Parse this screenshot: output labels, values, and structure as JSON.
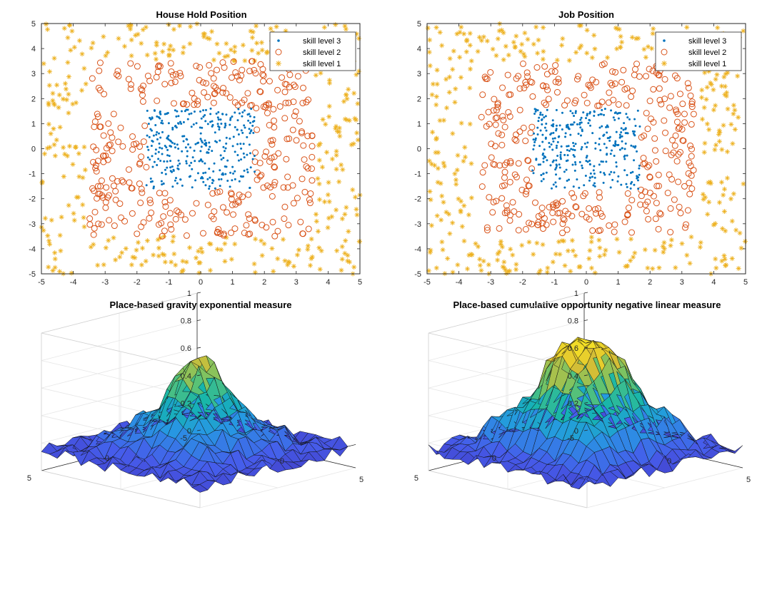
{
  "colors": {
    "level3": "#0072BD",
    "level2": "#D95319",
    "level1": "#EDB120",
    "axis": "#262626",
    "grid": "#e6e6e6"
  },
  "chart_data": [
    {
      "type": "scatter",
      "title": "House Hold Position",
      "xlim": [
        -5,
        5
      ],
      "ylim": [
        -5,
        5
      ],
      "xticks": [
        -5,
        -4,
        -3,
        -2,
        -1,
        0,
        1,
        2,
        3,
        4,
        5
      ],
      "yticks": [
        -5,
        -4,
        -3,
        -2,
        -1,
        0,
        1,
        2,
        3,
        4,
        5
      ],
      "legend_position": "top-right",
      "series": [
        {
          "name": "skill level 3",
          "marker": "dot",
          "color": "#0072BD",
          "count": 330,
          "region": "inner box x[-2.2,2.2] y[-1.6,1.6]"
        },
        {
          "name": "skill level 2",
          "marker": "circle",
          "color": "#D95319",
          "count": 350,
          "region": "ring x[-3.5,3.5] y[-3.4,3.4]"
        },
        {
          "name": "skill level 1",
          "marker": "asterisk",
          "color": "#EDB120",
          "count": 350,
          "region": "outer area x[-5,5] y[-5,5]"
        }
      ]
    },
    {
      "type": "scatter",
      "title": "Job Position",
      "xlim": [
        -5,
        5
      ],
      "ylim": [
        -5,
        5
      ],
      "xticks": [
        -5,
        -4,
        -3,
        -2,
        -1,
        0,
        1,
        2,
        3,
        4,
        5
      ],
      "yticks": [
        -5,
        -4,
        -3,
        -2,
        -1,
        0,
        1,
        2,
        3,
        4,
        5
      ],
      "legend_position": "top-right",
      "series": [
        {
          "name": "skill level 3",
          "marker": "dot",
          "color": "#0072BD",
          "count": 330,
          "region": "inner box x[-2,2] y[-1.6,1.6]"
        },
        {
          "name": "skill level 2",
          "marker": "circle",
          "color": "#D95319",
          "count": 330,
          "region": "ring x[-3.4,3.4] y[-3.4,3.4]"
        },
        {
          "name": "skill level 1",
          "marker": "asterisk",
          "color": "#EDB120",
          "count": 350,
          "region": "outer area x[-5,5] y[-5,5]"
        }
      ]
    },
    {
      "type": "surface",
      "title": "Place-based gravity exponential measure",
      "xlim": [
        -5,
        5
      ],
      "ylim": [
        -5,
        5
      ],
      "zlim": [
        0,
        1
      ],
      "zticks": [
        0,
        0.2,
        0.4,
        0.6,
        0.8,
        1
      ],
      "xticks": [
        0,
        5
      ],
      "yticks": [
        -5,
        0,
        5
      ],
      "colormap": "parula",
      "shape": {
        "center_height": 0.8,
        "shoulder_height": 0.35,
        "edge_height": 0.15
      }
    },
    {
      "type": "surface",
      "title": "Place-based cumulative opportunity negative linear measure",
      "xlim": [
        -5,
        5
      ],
      "ylim": [
        -5,
        5
      ],
      "zlim": [
        0,
        1
      ],
      "zticks": [
        0,
        0.2,
        0.4,
        0.6,
        0.8,
        1
      ],
      "xticks": [
        0,
        5
      ],
      "yticks": [
        -5,
        0,
        5
      ],
      "colormap": "parula",
      "shape": {
        "center_height": 0.92,
        "shoulder_height": 0.48,
        "edge_height": 0.15
      }
    }
  ]
}
